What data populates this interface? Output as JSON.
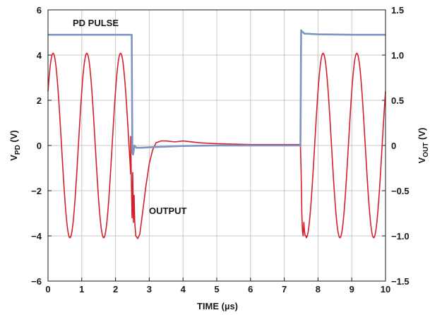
{
  "chart_data": {
    "type": "line",
    "xlabel": "TIME (µs)",
    "ylabel_left": {
      "main": "V",
      "sub": "PD",
      "unit": " (V)"
    },
    "ylabel_right": {
      "main": "V",
      "sub": "OUT",
      "unit": " (V)"
    },
    "xlim": [
      0,
      10
    ],
    "ylim_left": [
      -6,
      6
    ],
    "ylim_right": [
      -1.5,
      1.5
    ],
    "x_ticks": [
      "0",
      "1",
      "2",
      "3",
      "4",
      "5",
      "6",
      "7",
      "8",
      "9",
      "10"
    ],
    "y_left_ticks": [
      "6",
      "4",
      "2",
      "0",
      "−2",
      "−4",
      "−6"
    ],
    "y_right_ticks": [
      "1.5",
      "1.0",
      "0.5",
      "0",
      "−0.5",
      "−1.0",
      "−1.5"
    ],
    "grid": true,
    "annotations": {
      "pd_pulse": "PD PULSE",
      "output": "OUTPUT"
    },
    "colors": {
      "pd_pulse": "#7f95c1",
      "output": "#d4202c",
      "grid": "#c8c8c8"
    },
    "series": [
      {
        "label": "PD PULSE",
        "axis": "left",
        "x": [
          0,
          2.48,
          2.49,
          2.5,
          2.52,
          2.56,
          2.62,
          2.75,
          3.0,
          3.5,
          4.0,
          5.0,
          6.0,
          7.0,
          7.48,
          7.49,
          7.5,
          7.52,
          7.6,
          8.0,
          9.0,
          10.0
        ],
        "y": [
          4.9,
          4.9,
          2.0,
          -0.3,
          -0.4,
          0.0,
          -0.1,
          -0.1,
          -0.08,
          -0.05,
          -0.02,
          0.0,
          0.0,
          0.0,
          0.0,
          2.5,
          5.1,
          5.05,
          4.95,
          4.92,
          4.9,
          4.9
        ]
      },
      {
        "label": "OUTPUT",
        "axis": "right",
        "segments": [
          {
            "type": "sine",
            "x_start": 0,
            "x_end": 2.45,
            "amplitude": 1.02,
            "offset": 0,
            "period": 1.0,
            "phase_x": 0.15
          },
          {
            "type": "points",
            "x": [
              2.45,
              2.47,
              2.49,
              2.51,
              2.53,
              2.55,
              2.57,
              2.6,
              2.66,
              2.72,
              2.8,
              2.9,
              3.0,
              3.1,
              3.2,
              3.35,
              3.5,
              3.75,
              4.0,
              4.5,
              5.0,
              6.0,
              7.0,
              7.48
            ],
            "y": [
              0.1,
              -0.4,
              -0.8,
              -0.3,
              -0.85,
              -0.55,
              -0.85,
              -1.0,
              -1.03,
              -0.98,
              -0.75,
              -0.45,
              -0.2,
              -0.05,
              0.03,
              0.05,
              0.05,
              0.04,
              0.05,
              0.03,
              0.02,
              0.01,
              0.01,
              0.01
            ]
          },
          {
            "type": "points",
            "x": [
              7.48,
              7.5,
              7.52,
              7.54,
              7.56,
              7.58,
              7.6,
              7.62,
              7.65
            ],
            "y": [
              0.0,
              -0.3,
              -0.75,
              -0.95,
              -1.0,
              -0.85,
              -0.95,
              -1.0,
              -1.0
            ]
          },
          {
            "type": "sine",
            "x_start": 7.65,
            "x_end": 10.0,
            "amplitude": 1.02,
            "offset": 0,
            "period": 1.0,
            "phase_x": 8.15
          }
        ]
      }
    ]
  }
}
